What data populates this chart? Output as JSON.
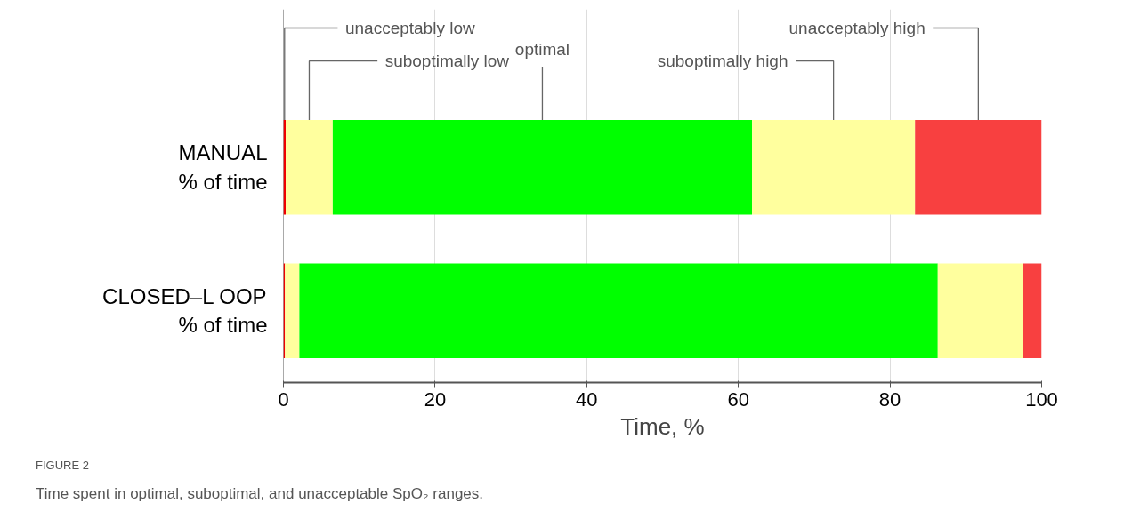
{
  "chart_data": {
    "type": "bar",
    "orientation": "horizontal",
    "stacked": true,
    "categories": [
      "MANUAL\n% of time",
      "CLOSED–L OOP\n% of time"
    ],
    "series": [
      {
        "name": "unacceptably low",
        "color": "#ee0000",
        "values": [
          0.3,
          0.2
        ]
      },
      {
        "name": "suboptimally low",
        "color": "#ffff9e",
        "values": [
          6.2,
          1.9
        ]
      },
      {
        "name": "optimal",
        "color": "#00ff00",
        "values": [
          55.3,
          84.2
        ]
      },
      {
        "name": "suboptimally high",
        "color": "#ffff9e",
        "values": [
          21.5,
          11.2
        ]
      },
      {
        "name": "unacceptably high",
        "color": "#f84040",
        "values": [
          16.7,
          2.5
        ]
      }
    ],
    "xlim": [
      0,
      100
    ],
    "xticks": [
      0,
      20,
      40,
      60,
      80,
      100
    ],
    "xlabel": "Time, %",
    "grid": "x",
    "annotations": [
      "FIGURE 2",
      "Time spent in optimal, suboptimal, and unacceptable SpO₂ ranges."
    ]
  }
}
